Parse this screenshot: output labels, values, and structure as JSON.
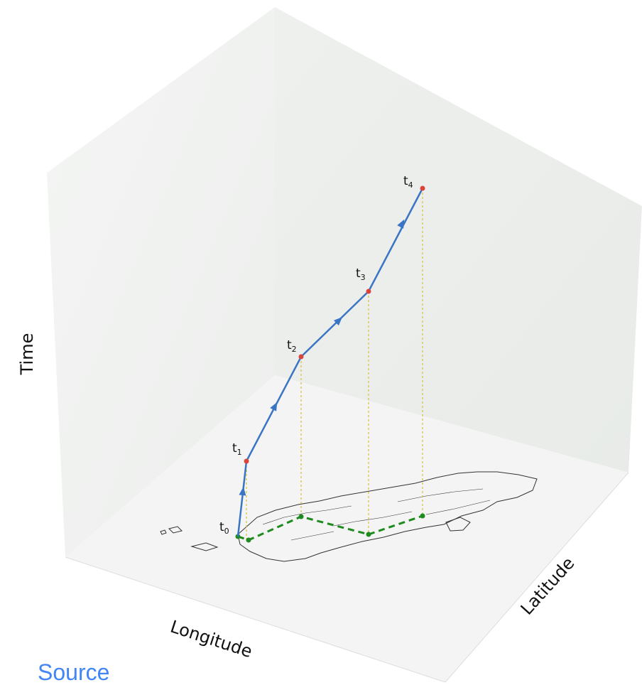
{
  "axes": {
    "time": "Time",
    "longitude": "Longitude",
    "latitude": "Latitude"
  },
  "time_points": [
    {
      "label": "t",
      "sub": "0"
    },
    {
      "label": "t",
      "sub": "1"
    },
    {
      "label": "t",
      "sub": "2"
    },
    {
      "label": "t",
      "sub": "3"
    },
    {
      "label": "t",
      "sub": "4"
    }
  ],
  "link": {
    "source": "Source"
  },
  "colors": {
    "trajectory": "#3a74c4",
    "space_path": "#1f8a1f",
    "time_points": "#d9453b",
    "projection": "#d4c23a",
    "panels": "#eef0ee"
  }
}
